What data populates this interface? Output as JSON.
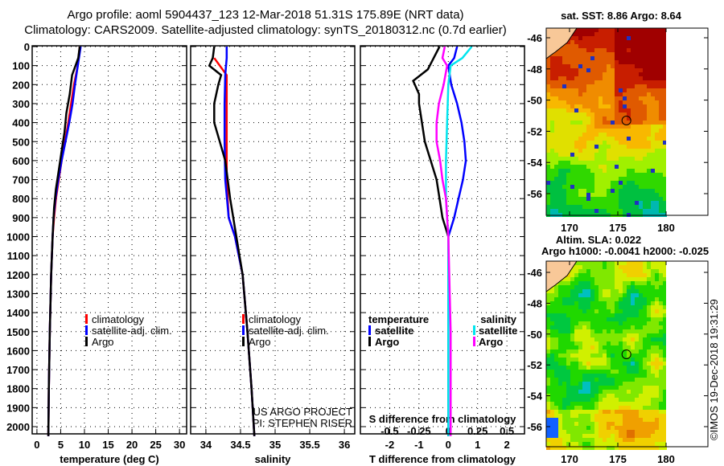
{
  "title_line1": "Argo profile: aoml 5904437_123 12-Mar-2018 51.31S 175.89E (NRT data)",
  "title_line2": "Climatology: CARS2009. Satellite-adjusted climatology: synTS_20180312.nc (0.7d earlier)",
  "colors": {
    "climatology": "#ff0000",
    "satellite": "#0000ff",
    "argo": "#000000",
    "sal_satellite": "#00e5ee",
    "sal_argo": "#ff00ff"
  },
  "chart_data": [
    {
      "type": "line",
      "id": "temperature",
      "xlabel": "temperature (deg C)",
      "ylabel": "depth",
      "xlim": [
        -1,
        31.5
      ],
      "ylim": [
        2050,
        0
      ],
      "xticks": [
        "0",
        "5",
        "10",
        "15",
        "20",
        "25",
        "30"
      ],
      "xtick_values": [
        0,
        5,
        10,
        15,
        20,
        25,
        30
      ],
      "yticks": [
        "0",
        "100",
        "200",
        "300",
        "400",
        "500",
        "600",
        "700",
        "800",
        "900",
        "1000",
        "1100",
        "1200",
        "1300",
        "1400",
        "1500",
        "1600",
        "1700",
        "1800",
        "1900",
        "2000"
      ],
      "legend": [
        "climatology",
        "satellite-adj. clim.",
        "Argo"
      ],
      "series": [
        {
          "name": "climatology",
          "color": "#ff0000",
          "depth": [
            0,
            100,
            200,
            300,
            400,
            500,
            600,
            700,
            800,
            900,
            1000,
            1200,
            1500,
            1800,
            2050
          ],
          "values": [
            9,
            8.6,
            7.8,
            7.2,
            6.6,
            5.9,
            5.2,
            4.6,
            4.0,
            3.6,
            3.3,
            3.0,
            2.7,
            2.5,
            2.4
          ]
        },
        {
          "name": "satellite-adj. clim.",
          "color": "#0000ff",
          "depth": [
            0,
            100,
            200,
            300,
            400,
            500,
            600,
            700,
            800,
            900,
            1000,
            1200,
            1500,
            1800,
            2050
          ],
          "values": [
            9.2,
            8.6,
            8.0,
            7.5,
            6.8,
            6.0,
            5.2,
            4.5,
            3.9,
            3.5,
            3.3,
            3.0,
            2.7,
            2.5,
            2.4
          ]
        },
        {
          "name": "Argo",
          "color": "#000000",
          "depth": [
            0,
            60,
            150,
            250,
            350,
            450,
            550,
            650,
            750,
            850,
            1000,
            1200,
            1500,
            1800,
            2050
          ],
          "values": [
            9,
            8.7,
            7.4,
            6.9,
            6.2,
            5.8,
            5.2,
            4.6,
            4.0,
            3.6,
            3.3,
            3.0,
            2.7,
            2.5,
            2.4
          ]
        }
      ]
    },
    {
      "type": "line",
      "id": "salinity",
      "xlabel": "salinity",
      "xlim": [
        33.78,
        36.15
      ],
      "xticks": [
        "34",
        "34.5",
        "35",
        "35.5",
        "36"
      ],
      "xtick_values": [
        34,
        34.5,
        35,
        35.5,
        36
      ],
      "legend": [
        "climatology",
        "satellite-adj. clim.",
        "Argo"
      ],
      "annotation": [
        "US ARGO PROJECT",
        "PI: STEPHEN RISER"
      ],
      "series": [
        {
          "name": "climatology",
          "color": "#ff0000",
          "depth": [
            60,
            100,
            150,
            300,
            500,
            700,
            900,
            1000,
            1200,
            1500,
            1800,
            2050
          ],
          "values": [
            34.12,
            34.2,
            34.3,
            34.3,
            34.3,
            34.3,
            34.33,
            34.42,
            34.53,
            34.6,
            34.66,
            34.7
          ]
        },
        {
          "name": "satellite-adj. clim.",
          "color": "#0000ff",
          "depth": [
            0,
            60,
            150,
            300,
            500,
            700,
            900,
            1000,
            1200,
            1500,
            1800,
            2050
          ],
          "values": [
            34.3,
            34.3,
            34.28,
            34.27,
            34.27,
            34.28,
            34.33,
            34.42,
            34.53,
            34.6,
            34.66,
            34.7
          ]
        },
        {
          "name": "Argo",
          "color": "#000000",
          "depth": [
            0,
            60,
            100,
            150,
            200,
            300,
            400,
            500,
            600,
            800,
            1000,
            1200,
            1500,
            1800,
            2050
          ],
          "values": [
            34.12,
            34.1,
            34.05,
            34.22,
            34.18,
            34.12,
            34.12,
            34.2,
            34.28,
            34.35,
            34.44,
            34.53,
            34.6,
            34.66,
            34.7
          ]
        }
      ]
    },
    {
      "type": "line",
      "id": "difference",
      "xlabel": "T difference from climatology",
      "xlabel2": "S difference from climatology",
      "xlim": [
        -3.0,
        2.6
      ],
      "xticks": [
        "-2",
        "-1",
        "0",
        "1",
        "2"
      ],
      "xtick_values": [
        -2,
        -1,
        0,
        1,
        2
      ],
      "xticks2": [
        "-0.5",
        "-0.25",
        "0",
        "0.25",
        "0.5"
      ],
      "xtick2_values": [
        -0.5,
        -0.25,
        0,
        0.25,
        0.5
      ],
      "legend_t_title": "temperature",
      "legend_s_title": "salinity",
      "legend": [
        "satellite",
        "Argo",
        "satellite",
        "Argo"
      ],
      "series": [
        {
          "name": "T satellite",
          "color": "#0000ff",
          "axis": "T",
          "depth": [
            0,
            60,
            100,
            200,
            300,
            400,
            500,
            600,
            700,
            800,
            900,
            1000,
            1200,
            2050
          ],
          "values": [
            0.3,
            0.2,
            0.0,
            0.1,
            0.3,
            0.45,
            0.55,
            0.6,
            0.5,
            0.35,
            0.2,
            0.0,
            0.0,
            0.0
          ]
        },
        {
          "name": "T Argo",
          "color": "#000000",
          "axis": "T",
          "depth": [
            0,
            60,
            120,
            180,
            250,
            300,
            400,
            500,
            600,
            700,
            800,
            900,
            1000,
            1200,
            2050
          ],
          "values": [
            -0.3,
            -0.5,
            -0.7,
            -1.2,
            -1.0,
            -1.0,
            -0.9,
            -0.8,
            -0.6,
            -0.4,
            -0.3,
            -0.2,
            0.0,
            0.0,
            0.0
          ]
        },
        {
          "name": "S satellite",
          "color": "#00e5ee",
          "axis": "S",
          "depth": [
            0,
            60,
            100,
            200,
            400,
            600,
            800,
            1000,
            1500,
            2050
          ],
          "values": [
            0.2,
            0.12,
            0.02,
            0.0,
            -0.01,
            -0.02,
            -0.02,
            0.0,
            0.0,
            0.0
          ]
        },
        {
          "name": "S Argo",
          "color": "#ff00ff",
          "axis": "S",
          "depth": [
            0,
            60,
            100,
            200,
            300,
            400,
            500,
            600,
            700,
            800,
            1000,
            1500,
            2050
          ],
          "values": [
            -0.03,
            -0.05,
            -0.01,
            -0.04,
            -0.08,
            -0.1,
            -0.1,
            -0.07,
            -0.05,
            -0.02,
            0.0,
            0.02,
            0.02
          ]
        }
      ]
    }
  ],
  "map_sst": {
    "title": "sat. SST: 8.86 Argo: 8.64",
    "lat_ticks": [
      "-46",
      "-48",
      "-50",
      "-52",
      "-54",
      "-56"
    ],
    "lon_ticks": [
      "170",
      "175",
      "180"
    ]
  },
  "map_sla": {
    "title1": "Altim. SLA: 0.022",
    "title2": "Argo h1000: -0.0041 h2000: -0.025",
    "lat_ticks": [
      "-46",
      "-48",
      "-50",
      "-52",
      "-54",
      "-56"
    ],
    "lon_ticks": [
      "170",
      "175",
      "180"
    ]
  },
  "profile_position": {
    "lat": -51.31,
    "lon": 175.89
  },
  "credit": "©IMOS 19-Dec-2018 19:31:29"
}
